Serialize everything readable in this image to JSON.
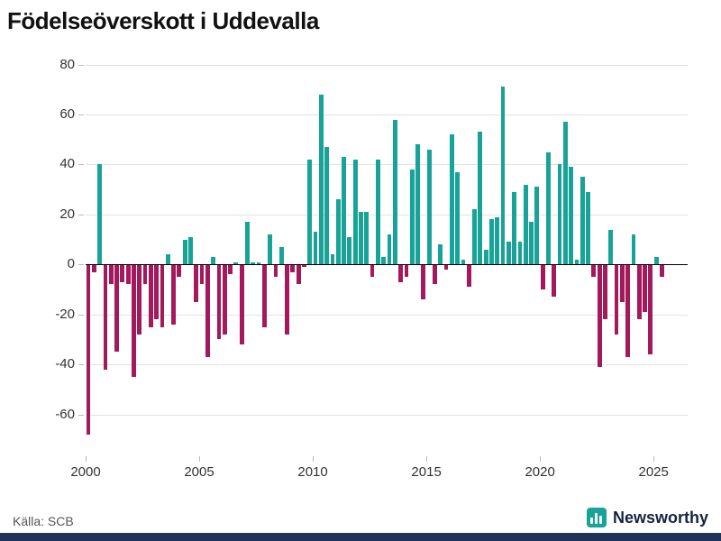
{
  "title": "Födelseöverskott i Uddevalla",
  "source": "Källa: SCB",
  "branding": {
    "logo_text": "Newsworthy",
    "logo_icon": "bar-chart-icon",
    "logo_color": "#17a398",
    "text_color": "#16243d"
  },
  "footer_bar_color": "#1f3356",
  "chart_data": {
    "type": "bar",
    "title": "Födelseöverskott i Uddevalla",
    "xlabel": "",
    "ylabel": "",
    "period": "quarterly",
    "start_year": 2000,
    "x": "quarters from 2000Q1 to 2025Q2",
    "values": [
      -68,
      -3,
      40,
      -42,
      -8,
      -35,
      -7,
      -8,
      -45,
      -28,
      -8,
      -25,
      -22,
      -25,
      4,
      -24,
      -5,
      10,
      11,
      -15,
      -8,
      -37,
      3,
      -30,
      -28,
      -4,
      1,
      -32,
      17,
      1,
      1,
      -25,
      12,
      -5,
      7,
      -28,
      -3,
      -8,
      -1,
      42,
      13,
      68,
      47,
      4,
      26,
      43,
      11,
      42,
      21,
      21,
      -5,
      42,
      3,
      12,
      58,
      -7,
      -5,
      38,
      48,
      -14,
      46,
      -8,
      8,
      -2,
      52,
      37,
      2,
      -9,
      22,
      53,
      6,
      18,
      19,
      71,
      9,
      29,
      9,
      32,
      17,
      31,
      -10,
      45,
      -13,
      40,
      57,
      39,
      2,
      35,
      29,
      -5,
      -41,
      -22,
      14,
      -28,
      -15,
      -37,
      12,
      -22,
      -19,
      -36,
      3,
      -5
    ],
    "y_ticks": [
      80,
      60,
      40,
      20,
      0,
      -20,
      -40,
      -60
    ],
    "x_ticks": [
      2000,
      2005,
      2010,
      2015,
      2020,
      2025
    ],
    "ylim": [
      -76,
      82
    ],
    "xlim": [
      2000,
      2026.5
    ],
    "grid": true,
    "legend": "none",
    "positive_color": "#17a398",
    "negative_color": "#a3195b",
    "gridline_color": "#e2e2e2",
    "zero_line_color": "#000000",
    "tick_label_color": "#333333"
  }
}
